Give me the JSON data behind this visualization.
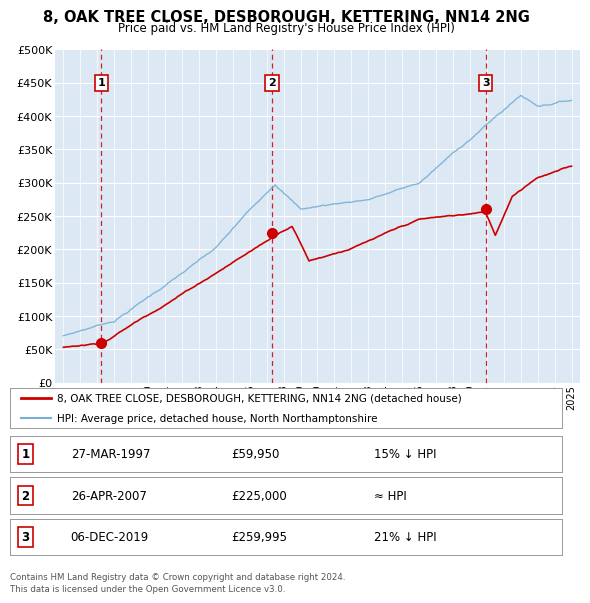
{
  "title": "8, OAK TREE CLOSE, DESBOROUGH, KETTERING, NN14 2NG",
  "subtitle": "Price paid vs. HM Land Registry's House Price Index (HPI)",
  "bg_color": "#dce9f5",
  "red_line_color": "#cc0000",
  "blue_line_color": "#7aafd4",
  "vline_color": "#cc0000",
  "transactions": [
    {
      "year": 1997.23,
      "price": 59950,
      "label": "1"
    },
    {
      "year": 2007.32,
      "price": 225000,
      "label": "2"
    },
    {
      "year": 2019.93,
      "price": 259995,
      "label": "3"
    }
  ],
  "legend_entries": [
    "8, OAK TREE CLOSE, DESBOROUGH, KETTERING, NN14 2NG (detached house)",
    "HPI: Average price, detached house, North Northamptonshire"
  ],
  "table_rows": [
    {
      "num": "1",
      "date": "27-MAR-1997",
      "price": "£59,950",
      "note": "15% ↓ HPI"
    },
    {
      "num": "2",
      "date": "26-APR-2007",
      "price": "£225,000",
      "note": "≈ HPI"
    },
    {
      "num": "3",
      "date": "06-DEC-2019",
      "price": "£259,995",
      "note": "21% ↓ HPI"
    }
  ],
  "footer": "Contains HM Land Registry data © Crown copyright and database right 2024.\nThis data is licensed under the Open Government Licence v3.0.",
  "ylim": [
    0,
    500000
  ],
  "yticks": [
    0,
    50000,
    100000,
    150000,
    200000,
    250000,
    300000,
    350000,
    400000,
    450000,
    500000
  ],
  "xlim_start": 1994.5,
  "xlim_end": 2025.5
}
